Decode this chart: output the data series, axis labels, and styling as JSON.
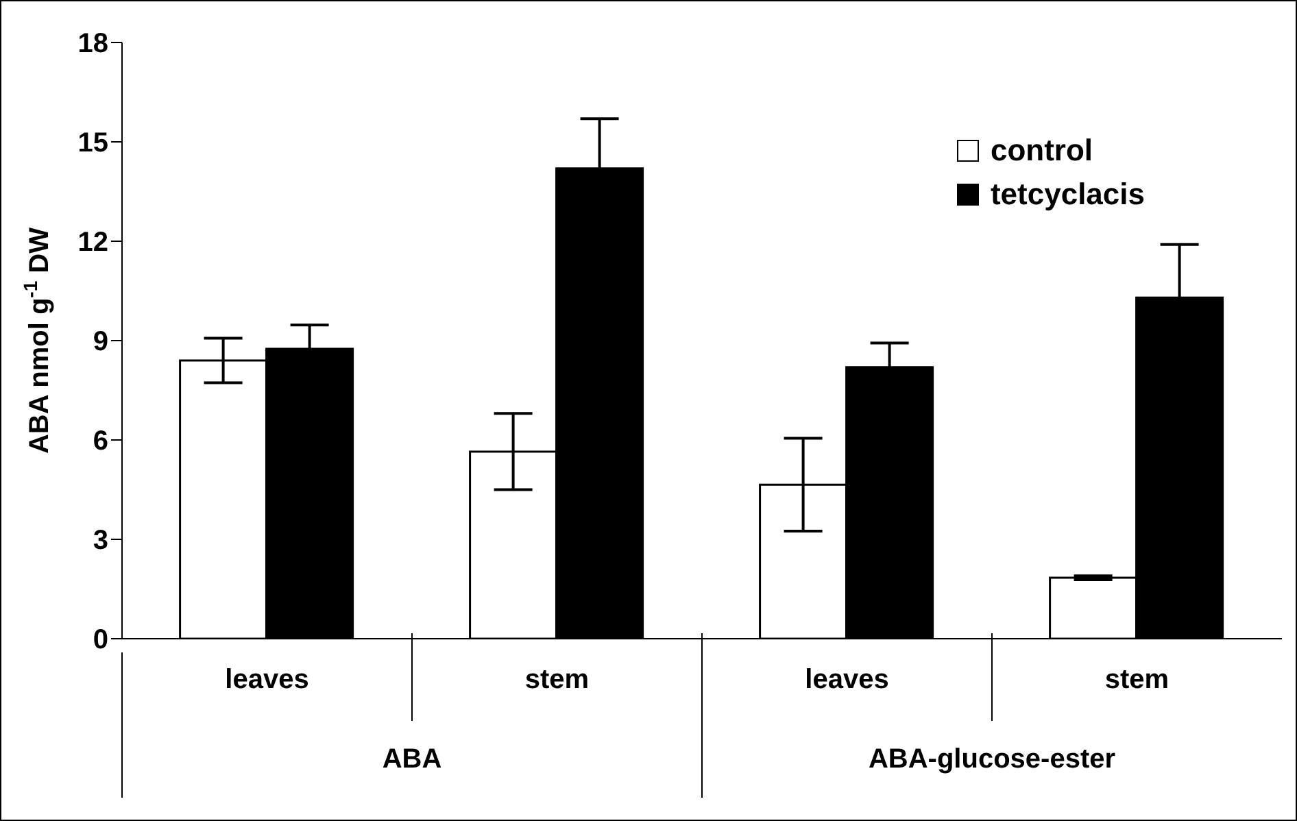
{
  "chart_data": {
    "type": "bar",
    "ylabel": "ABA nmol g$^{-1}$ DW",
    "categories": [
      "leaves",
      "stem",
      "leaves",
      "stem"
    ],
    "annotations": [
      "ABA",
      "ABA-glucose-ester"
    ],
    "series": [
      {
        "name": "control",
        "color": "#ffffff",
        "values": [
          8.4,
          5.65,
          4.65,
          1.84
        ],
        "errors": [
          0.67,
          1.15,
          1.4,
          0.06
        ]
      },
      {
        "name": "tetcyclacis",
        "color": "#000000",
        "values": [
          8.75,
          14.2,
          8.2,
          10.3
        ],
        "errors": [
          0.72,
          1.5,
          0.73,
          1.6
        ]
      }
    ],
    "ylim": [
      0,
      18
    ],
    "yticks": [
      0,
      3,
      6,
      9,
      12,
      15,
      18
    ],
    "grid": false,
    "legend": "top right"
  }
}
